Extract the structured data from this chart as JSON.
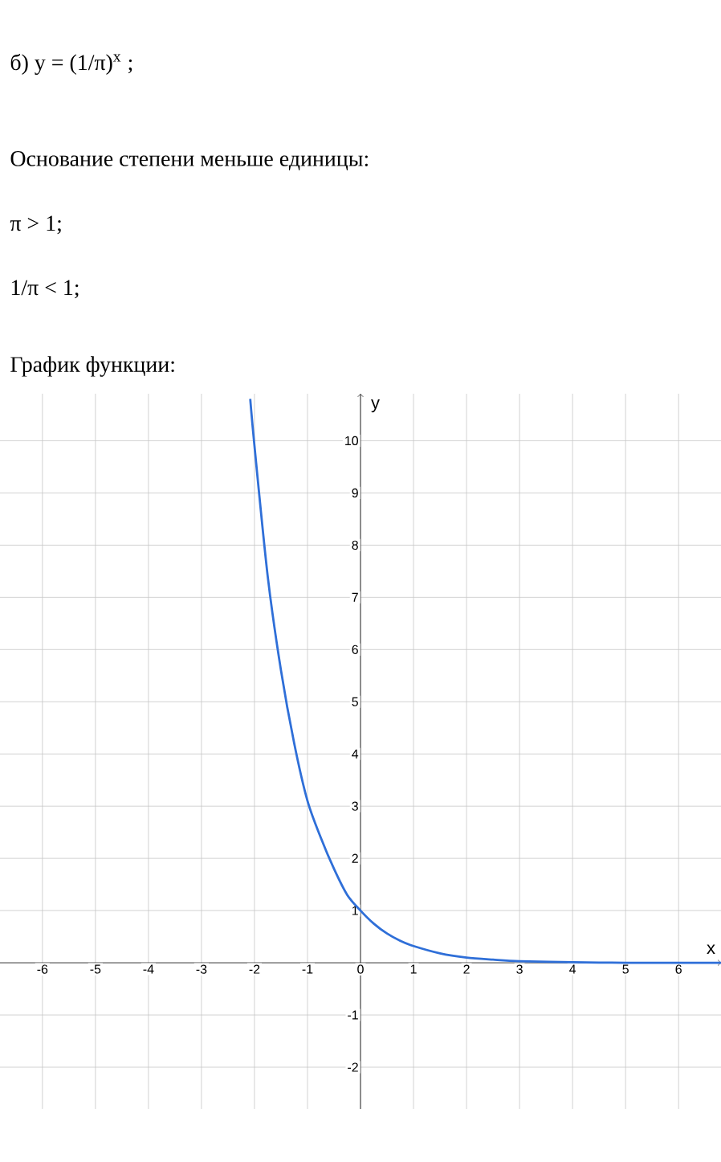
{
  "chart_data": {
    "type": "line",
    "annotations": [
      "б) y = (1/π)$^{x}$ ;",
      "Основание степени меньше единицы:",
      "π > 1;",
      "1/π < 1;",
      "График функции:"
    ],
    "xlabel": "x",
    "ylabel": "y",
    "x": [
      -2.08,
      -2,
      -1.75,
      -1.5,
      -1.25,
      -1,
      -0.75,
      -0.5,
      -0.25,
      0,
      0.25,
      0.5,
      0.75,
      1,
      1.5,
      2,
      2.5,
      3,
      4,
      5,
      6,
      6.8
    ],
    "series": [
      {
        "color": "#2f6fd8",
        "values": [
          10.8,
          9.9,
          7.4,
          5.6,
          4.2,
          3.1,
          2.4,
          1.8,
          1.3,
          1,
          0.75,
          0.56,
          0.42,
          0.32,
          0.18,
          0.1,
          0.06,
          0.03,
          0.01,
          0,
          0,
          0
        ]
      }
    ],
    "xlim": [
      -6.8,
      6.8
    ],
    "ylim": [
      -2.8,
      10.9
    ],
    "xticks": [
      -6,
      -5,
      -4,
      -3,
      -2,
      -1,
      0,
      1,
      2,
      3,
      4,
      5,
      6
    ],
    "yticks": [
      -2,
      -1,
      1,
      2,
      3,
      4,
      5,
      6,
      7,
      8,
      9,
      10
    ],
    "grid": true,
    "marker": "none",
    "line_style": "solid"
  }
}
